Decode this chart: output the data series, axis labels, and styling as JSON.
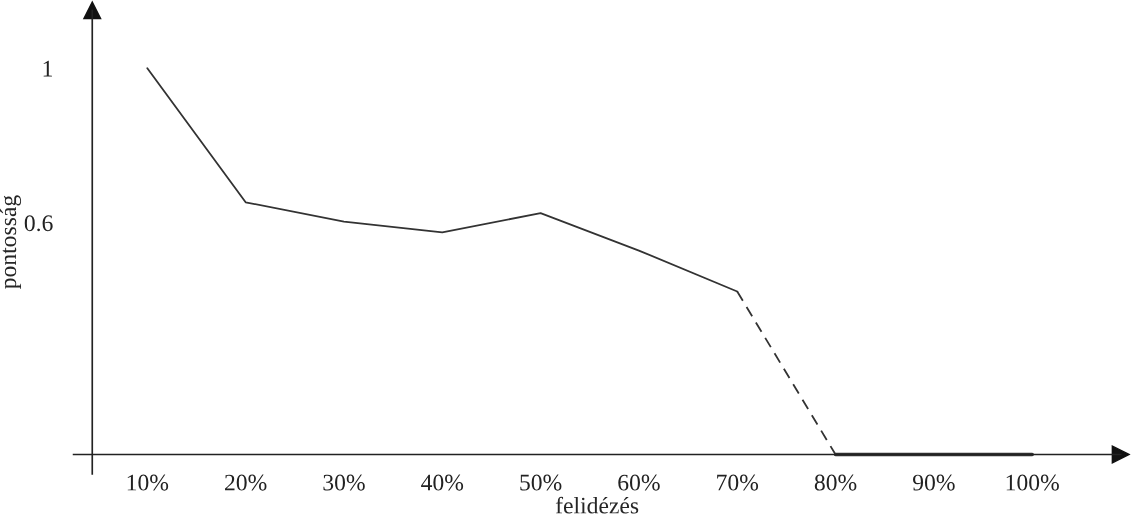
{
  "chart_data": {
    "type": "line",
    "xlabel": "felidézés",
    "ylabel": "pontosság",
    "categories": [
      "10%",
      "20%",
      "30%",
      "40%",
      "50%",
      "60%",
      "70%",
      "80%",
      "90%",
      "100%"
    ],
    "series": [
      {
        "color": "#333333",
        "line_style": "solid",
        "values": [
          1.0,
          0.653,
          0.603,
          0.575,
          0.625,
          0.528,
          0.422,
          null,
          null,
          null
        ]
      },
      {
        "color": "#333333",
        "line_style": "dashed",
        "values": [
          null,
          null,
          null,
          null,
          null,
          null,
          0.422,
          0.0,
          null,
          null
        ]
      },
      {
        "color": "#333333",
        "line_style": "solid",
        "values": [
          null,
          null,
          null,
          null,
          null,
          null,
          null,
          0.0,
          0.0,
          0.0
        ]
      }
    ],
    "ylim": [
      -0.05,
      1.15
    ],
    "yticks": [
      0.6,
      1
    ],
    "grid": false,
    "legend": false,
    "marker": "none"
  }
}
